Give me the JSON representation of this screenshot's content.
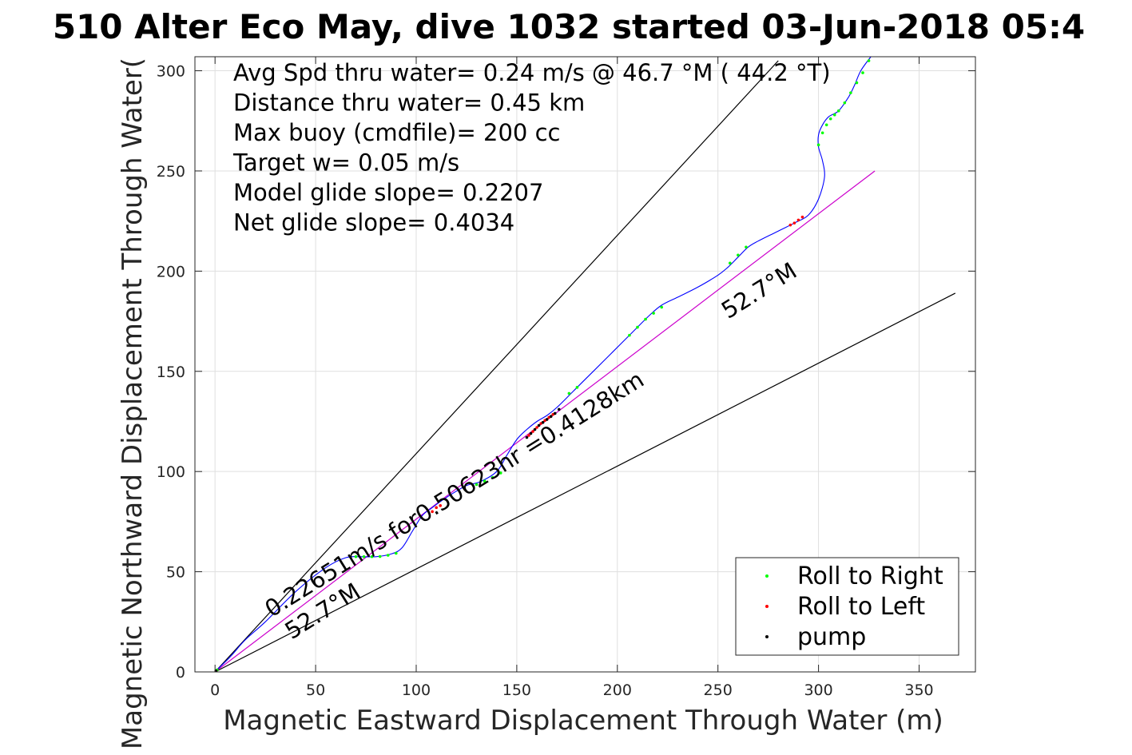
{
  "title": "510 Alter Eco May, dive 1032 started 03-Jun-2018 05:4",
  "chart_data": {
    "type": "line",
    "xlabel": "Magnetic Eastward Displacement Through Water (m)",
    "ylabel": "Magnetic Northward Displacement Through Water(",
    "xlim": [
      -10,
      378
    ],
    "ylim": [
      0,
      307
    ],
    "xticks": [
      0,
      50,
      100,
      150,
      200,
      250,
      300,
      350
    ],
    "yticks": [
      0,
      50,
      100,
      150,
      200,
      250,
      300
    ],
    "grid": true,
    "info_lines": [
      "Avg Spd thru water=  0.24 m/s @  46.7 °M ( 44.2 °T)",
      "Distance thru water=  0.45 km",
      "Max buoy (cmdfile)= 200 cc",
      "Target w= 0.05 m/s",
      "Model glide slope= 0.2207",
      "Net glide slope= 0.4034"
    ],
    "annotations": [
      {
        "text": "0.22651m/s for0.50623hr =0.4128km",
        "x": 28,
        "y": 27,
        "angle": -32
      },
      {
        "text": "52.7°M",
        "x": 38,
        "y": 16,
        "angle": -32
      },
      {
        "text": "52.7°M",
        "x": 255,
        "y": 176,
        "angle": -32
      }
    ],
    "lines": [
      {
        "name": "upper bound",
        "color": "#000000",
        "x": [
          0,
          280
        ],
        "y": [
          0,
          305
        ]
      },
      {
        "name": "lower bound",
        "color": "#000000",
        "x": [
          0,
          368
        ],
        "y": [
          0,
          189
        ]
      },
      {
        "name": "net heading",
        "color": "#cc00cc",
        "x": [
          0,
          328
        ],
        "y": [
          0,
          250
        ]
      }
    ],
    "track": {
      "color": "#0000ff",
      "x": [
        0,
        3,
        8,
        15,
        25,
        40,
        55,
        65,
        72,
        80,
        88,
        93,
        98,
        103,
        108,
        112,
        118,
        125,
        132,
        140,
        145,
        150,
        155,
        160,
        165,
        170,
        178,
        188,
        198,
        208,
        216,
        222,
        230,
        240,
        250,
        255,
        260,
        265,
        270,
        280,
        288,
        295,
        300,
        303,
        302,
        300,
        300,
        302,
        305,
        310,
        315,
        318,
        321,
        326
      ],
      "y": [
        0,
        3,
        8,
        16,
        25,
        40,
        52,
        57,
        57.5,
        57.5,
        59,
        62,
        70,
        78,
        82,
        85,
        89,
        93,
        95,
        100,
        108,
        116,
        121,
        125,
        128,
        132,
        140,
        150,
        160,
        170,
        178,
        183,
        187,
        192,
        198,
        202,
        207,
        212,
        215,
        220,
        224,
        228,
        236,
        247,
        255,
        262,
        268,
        273,
        277,
        280,
        287,
        293,
        300,
        307
      ]
    },
    "roll_right": {
      "color": "#00ff00",
      "x": [
        1,
        70,
        74,
        78,
        82,
        86,
        90,
        130,
        134,
        138,
        142,
        176,
        180,
        206,
        210,
        214,
        218,
        222,
        256,
        260,
        264,
        300,
        302,
        304,
        306,
        308,
        310,
        313,
        316,
        319,
        322,
        325
      ],
      "y": [
        1,
        57.5,
        57.5,
        57.5,
        57.6,
        58.2,
        59.2,
        93.5,
        95.2,
        97,
        99.3,
        139,
        142,
        168,
        172,
        176,
        179,
        182,
        204,
        208,
        212,
        263,
        269,
        273,
        276,
        278,
        280,
        284,
        289,
        294,
        299,
        305
      ]
    },
    "roll_left": {
      "color": "#ff0000",
      "x": [
        0.5,
        108,
        110,
        112,
        156,
        158,
        160,
        162,
        164,
        166,
        168,
        286,
        288,
        290,
        292
      ],
      "y": [
        0.5,
        80,
        82,
        83,
        118,
        120,
        122,
        124,
        125.5,
        127,
        128.5,
        223,
        224,
        225.5,
        227
      ]
    },
    "pump": {
      "color": "#000000",
      "x": [
        0.5,
        155,
        157,
        159,
        161,
        163,
        165,
        167,
        169,
        171
      ],
      "y": [
        0.5,
        117,
        119,
        121,
        123,
        124.5,
        126,
        127.5,
        129,
        131
      ]
    },
    "legend": {
      "position": "bottom-right",
      "entries": [
        {
          "label": "Roll to Right",
          "color": "#00ff00"
        },
        {
          "label": "Roll to Left",
          "color": "#ff0000"
        },
        {
          "label": "pump",
          "color": "#000000"
        }
      ]
    }
  }
}
